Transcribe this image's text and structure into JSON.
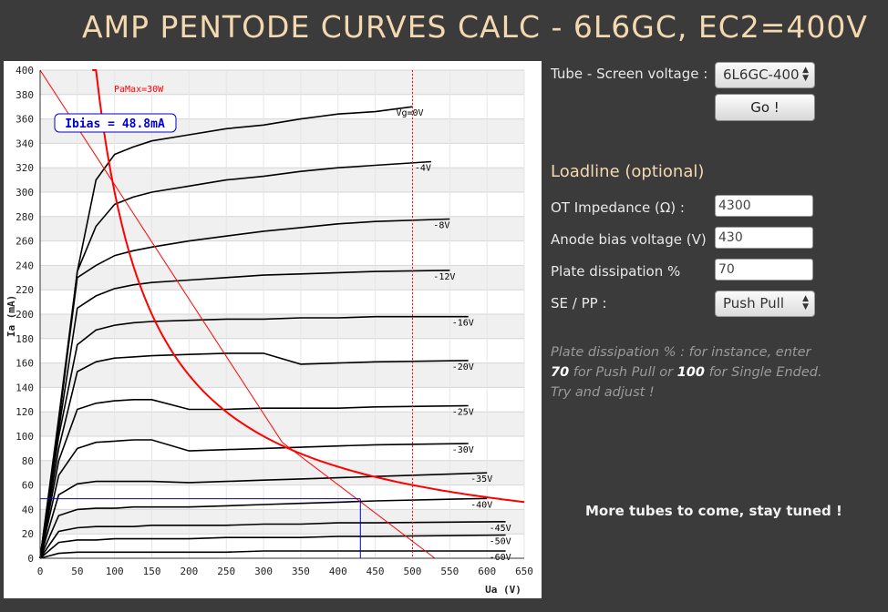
{
  "header": {
    "title": "AMP PENTODE CURVES CALC - 6L6GC, EC2=400V"
  },
  "form": {
    "tube_label": "Tube - Screen voltage :",
    "tube_value": "6L6GC-400",
    "go_label": "Go !",
    "loadline_title": "Loadline (optional)",
    "impedance_label": "OT Impedance (Ω) :",
    "impedance_value": "4300",
    "bias_label": "Anode bias voltage (V)",
    "bias_value": "430",
    "dissipation_label": "Plate dissipation %",
    "dissipation_value": "70",
    "mode_label": "SE / PP :",
    "mode_value": "Push Pull",
    "hint_part1": "Plate dissipation % : for instance, enter ",
    "hint_value1": "70",
    "hint_part2": " for Push Pull or ",
    "hint_value2": "100",
    "hint_part3": " for Single Ended. Try and adjust !"
  },
  "footer": {
    "more_tubes": "More tubes to come, stay tuned !"
  },
  "chart_data": {
    "type": "line",
    "xlabel": "Ua (V)",
    "ylabel": "Ia (mA)",
    "xlim": [
      0,
      650
    ],
    "ylim": [
      0,
      400
    ],
    "xticks": [
      0,
      50,
      100,
      150,
      200,
      250,
      300,
      350,
      400,
      450,
      500,
      550,
      600,
      650
    ],
    "yticks": [
      0,
      20,
      40,
      60,
      80,
      100,
      120,
      140,
      160,
      180,
      200,
      220,
      240,
      260,
      280,
      300,
      320,
      340,
      360,
      380,
      400
    ],
    "grid": true,
    "colors": {
      "curve": "#000000",
      "loadline": "#ff0000",
      "bias": "#0000cc"
    },
    "series": [
      {
        "name": "Vg=0V",
        "x": [
          0,
          25,
          50,
          75,
          100,
          125,
          150,
          200,
          250,
          300,
          350,
          400,
          450,
          500
        ],
        "y": [
          0,
          110,
          235,
          310,
          331,
          337,
          342,
          347,
          352,
          355,
          360,
          364,
          366,
          370
        ]
      },
      {
        "name": "-4V",
        "x": [
          0,
          25,
          50,
          75,
          100,
          125,
          150,
          200,
          250,
          300,
          350,
          400,
          450,
          525
        ],
        "y": [
          0,
          115,
          235,
          272,
          290,
          296,
          300,
          305,
          310,
          313,
          317,
          320,
          322,
          325
        ]
      },
      {
        "name": "-8V",
        "x": [
          0,
          25,
          50,
          75,
          100,
          125,
          150,
          200,
          250,
          300,
          350,
          400,
          450,
          550
        ],
        "y": [
          0,
          112,
          230,
          240,
          248,
          252,
          255,
          260,
          264,
          268,
          271,
          274,
          276,
          278
        ]
      },
      {
        "name": "-12V",
        "x": [
          0,
          25,
          50,
          75,
          100,
          125,
          150,
          200,
          250,
          300,
          350,
          400,
          450,
          550
        ],
        "y": [
          0,
          105,
          205,
          215,
          221,
          224,
          226,
          228,
          230,
          232,
          233,
          234,
          235,
          236
        ]
      },
      {
        "name": "-16V",
        "x": [
          0,
          25,
          50,
          75,
          100,
          125,
          150,
          200,
          250,
          300,
          350,
          400,
          450,
          575
        ],
        "y": [
          0,
          100,
          175,
          187,
          191,
          193,
          194,
          195,
          196,
          196,
          197,
          197,
          198,
          198
        ]
      },
      {
        "name": "-20V",
        "x": [
          0,
          25,
          50,
          75,
          100,
          125,
          150,
          200,
          250,
          300,
          350,
          400,
          450,
          575
        ],
        "y": [
          0,
          90,
          153,
          161,
          164,
          165,
          166,
          167,
          168,
          168,
          159,
          160,
          161,
          162
        ]
      },
      {
        "name": "-25V",
        "x": [
          0,
          25,
          50,
          75,
          100,
          125,
          150,
          200,
          250,
          300,
          350,
          400,
          450,
          575
        ],
        "y": [
          0,
          80,
          122,
          127,
          129,
          130,
          130,
          122,
          122,
          123,
          123,
          123,
          124,
          125
        ]
      },
      {
        "name": "-30V",
        "x": [
          0,
          25,
          50,
          75,
          100,
          125,
          150,
          200,
          250,
          300,
          350,
          400,
          450,
          575
        ],
        "y": [
          0,
          68,
          90,
          95,
          96,
          97,
          97,
          88,
          89,
          90,
          91,
          92,
          93,
          94
        ]
      },
      {
        "name": "-35V",
        "x": [
          0,
          25,
          50,
          75,
          100,
          125,
          150,
          200,
          250,
          300,
          350,
          400,
          450,
          600
        ],
        "y": [
          0,
          52,
          61,
          63,
          63,
          63,
          63,
          62,
          63,
          64,
          65,
          66,
          67,
          70
        ]
      },
      {
        "name": "-40V",
        "x": [
          0,
          25,
          50,
          75,
          100,
          125,
          150,
          200,
          250,
          300,
          350,
          400,
          450,
          600
        ],
        "y": [
          0,
          35,
          40,
          41,
          41,
          42,
          42,
          42,
          43,
          44,
          45,
          46,
          47,
          49
        ]
      },
      {
        "name": "-45V",
        "x": [
          0,
          25,
          50,
          75,
          100,
          125,
          150,
          200,
          250,
          300,
          350,
          400,
          450,
          625
        ],
        "y": [
          0,
          22,
          25,
          26,
          26,
          26,
          27,
          27,
          27,
          28,
          28,
          29,
          29,
          30
        ]
      },
      {
        "name": "-50V",
        "x": [
          0,
          25,
          50,
          75,
          100,
          125,
          150,
          200,
          250,
          300,
          350,
          400,
          450,
          625
        ],
        "y": [
          0,
          13,
          15,
          15,
          16,
          16,
          16,
          16,
          17,
          17,
          17,
          18,
          18,
          19
        ]
      },
      {
        "name": "-60V",
        "x": [
          0,
          25,
          50,
          75,
          100,
          125,
          150,
          200,
          250,
          300,
          350,
          400,
          450,
          625
        ],
        "y": [
          0,
          4,
          5,
          5,
          5,
          5,
          5,
          5,
          5,
          6,
          6,
          6,
          6,
          6
        ]
      }
    ],
    "pamax_curve": {
      "name": "PaMax=30W",
      "watts": 30,
      "x_from": 70,
      "x_to": 650
    },
    "loadline": {
      "points": [
        [
          0,
          400
        ],
        [
          325,
          95
        ],
        [
          530,
          0
        ]
      ]
    },
    "bias_point": {
      "x": 430,
      "y": 48.8,
      "label": "Ibias = 48.8mA"
    },
    "vertical_marker": {
      "x": 500
    }
  }
}
